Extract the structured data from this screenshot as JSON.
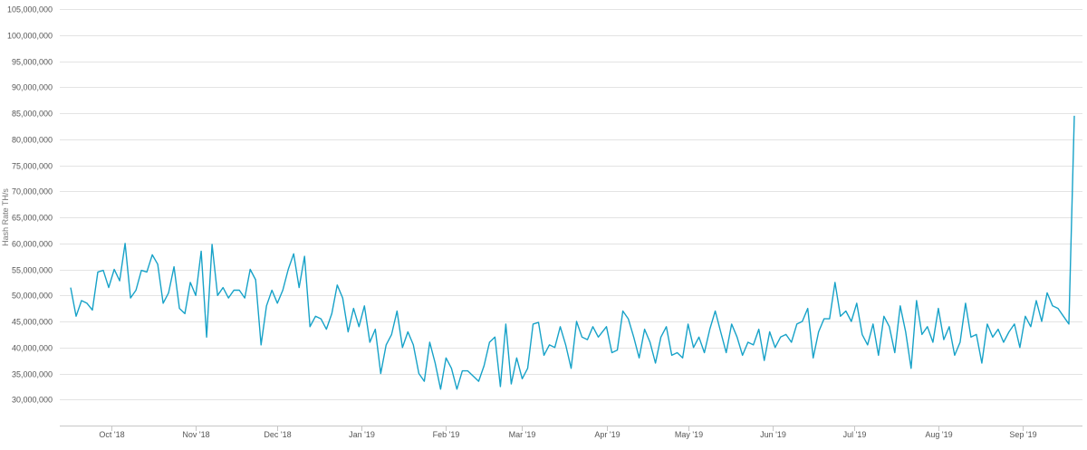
{
  "chart_data": {
    "type": "line",
    "ylabel": "Hash Rate TH/s",
    "xlabel": "",
    "title": "",
    "ylim": [
      25000000,
      105000000
    ],
    "yticks": [
      30000000,
      35000000,
      40000000,
      45000000,
      50000000,
      55000000,
      60000000,
      65000000,
      70000000,
      75000000,
      80000000,
      85000000,
      90000000,
      95000000,
      100000000,
      105000000
    ],
    "ytick_labels": [
      "30,000,000",
      "35,000,000",
      "40,000,000",
      "45,000,000",
      "50,000,000",
      "55,000,000",
      "60,000,000",
      "65,000,000",
      "70,000,000",
      "75,000,000",
      "80,000,000",
      "85,000,000",
      "90,000,000",
      "95,000,000",
      "100,000,000",
      "105,000,000"
    ],
    "xlim": [
      "2018-09-12",
      "2019-09-23"
    ],
    "xticks": [
      {
        "date": "2018-10-01",
        "label": "Oct '18"
      },
      {
        "date": "2018-11-01",
        "label": "Nov '18"
      },
      {
        "date": "2018-12-01",
        "label": "Dec '18"
      },
      {
        "date": "2019-01-01",
        "label": "Jan '19"
      },
      {
        "date": "2019-02-01",
        "label": "Feb '19"
      },
      {
        "date": "2019-03-01",
        "label": "Mar '19"
      },
      {
        "date": "2019-04-01",
        "label": "Apr '19"
      },
      {
        "date": "2019-05-01",
        "label": "May '19"
      },
      {
        "date": "2019-06-01",
        "label": "Jun '19"
      },
      {
        "date": "2019-07-01",
        "label": "Jul '19"
      },
      {
        "date": "2019-08-01",
        "label": "Aug '19"
      },
      {
        "date": "2019-09-01",
        "label": "Sep '19"
      }
    ],
    "grid": true,
    "legend": "none",
    "color": "#17a2c8",
    "series": [
      {
        "name": "",
        "points": [
          [
            "2018-09-16",
            51500000
          ],
          [
            "2018-09-18",
            46000000
          ],
          [
            "2018-09-20",
            49000000
          ],
          [
            "2018-09-22",
            48500000
          ],
          [
            "2018-09-24",
            47200000
          ],
          [
            "2018-09-26",
            54500000
          ],
          [
            "2018-09-28",
            54800000
          ],
          [
            "2018-09-30",
            51500000
          ],
          [
            "2018-10-02",
            55000000
          ],
          [
            "2018-10-04",
            52800000
          ],
          [
            "2018-10-06",
            60000000
          ],
          [
            "2018-10-08",
            49500000
          ],
          [
            "2018-10-10",
            51000000
          ],
          [
            "2018-10-12",
            54800000
          ],
          [
            "2018-10-14",
            54500000
          ],
          [
            "2018-10-16",
            57800000
          ],
          [
            "2018-10-18",
            56000000
          ],
          [
            "2018-10-20",
            48500000
          ],
          [
            "2018-10-22",
            50500000
          ],
          [
            "2018-10-24",
            55500000
          ],
          [
            "2018-10-26",
            47500000
          ],
          [
            "2018-10-28",
            46500000
          ],
          [
            "2018-10-30",
            52500000
          ],
          [
            "2018-11-01",
            50000000
          ],
          [
            "2018-11-03",
            58500000
          ],
          [
            "2018-11-05",
            42000000
          ],
          [
            "2018-11-07",
            59800000
          ],
          [
            "2018-11-09",
            50000000
          ],
          [
            "2018-11-11",
            51500000
          ],
          [
            "2018-11-13",
            49500000
          ],
          [
            "2018-11-15",
            51000000
          ],
          [
            "2018-11-17",
            51000000
          ],
          [
            "2018-11-19",
            49500000
          ],
          [
            "2018-11-21",
            55000000
          ],
          [
            "2018-11-23",
            53000000
          ],
          [
            "2018-11-25",
            40500000
          ],
          [
            "2018-11-27",
            48000000
          ],
          [
            "2018-11-29",
            51000000
          ],
          [
            "2018-12-01",
            48500000
          ],
          [
            "2018-12-03",
            51000000
          ],
          [
            "2018-12-05",
            55000000
          ],
          [
            "2018-12-07",
            58000000
          ],
          [
            "2018-12-09",
            51500000
          ],
          [
            "2018-12-11",
            57500000
          ],
          [
            "2018-12-13",
            44000000
          ],
          [
            "2018-12-15",
            46000000
          ],
          [
            "2018-12-17",
            45500000
          ],
          [
            "2018-12-19",
            43500000
          ],
          [
            "2018-12-21",
            46500000
          ],
          [
            "2018-12-23",
            52000000
          ],
          [
            "2018-12-25",
            49500000
          ],
          [
            "2018-12-27",
            43000000
          ],
          [
            "2018-12-29",
            47500000
          ],
          [
            "2018-12-31",
            44000000
          ],
          [
            "2019-01-02",
            48000000
          ],
          [
            "2019-01-04",
            41000000
          ],
          [
            "2019-01-06",
            43500000
          ],
          [
            "2019-01-08",
            35000000
          ],
          [
            "2019-01-10",
            40500000
          ],
          [
            "2019-01-12",
            42500000
          ],
          [
            "2019-01-14",
            47000000
          ],
          [
            "2019-01-16",
            40000000
          ],
          [
            "2019-01-18",
            43000000
          ],
          [
            "2019-01-20",
            40500000
          ],
          [
            "2019-01-22",
            35000000
          ],
          [
            "2019-01-24",
            33500000
          ],
          [
            "2019-01-26",
            41000000
          ],
          [
            "2019-01-28",
            37000000
          ],
          [
            "2019-01-30",
            32000000
          ],
          [
            "2019-02-01",
            38000000
          ],
          [
            "2019-02-03",
            36000000
          ],
          [
            "2019-02-05",
            32000000
          ],
          [
            "2019-02-07",
            35500000
          ],
          [
            "2019-02-09",
            35500000
          ],
          [
            "2019-02-11",
            34500000
          ],
          [
            "2019-02-13",
            33500000
          ],
          [
            "2019-02-15",
            36500000
          ],
          [
            "2019-02-17",
            41000000
          ],
          [
            "2019-02-19",
            42000000
          ],
          [
            "2019-02-21",
            32500000
          ],
          [
            "2019-02-23",
            44500000
          ],
          [
            "2019-02-25",
            33000000
          ],
          [
            "2019-02-27",
            38000000
          ],
          [
            "2019-03-01",
            34000000
          ],
          [
            "2019-03-03",
            36000000
          ],
          [
            "2019-03-05",
            44500000
          ],
          [
            "2019-03-07",
            44800000
          ],
          [
            "2019-03-09",
            38500000
          ],
          [
            "2019-03-11",
            40500000
          ],
          [
            "2019-03-13",
            40000000
          ],
          [
            "2019-03-15",
            44000000
          ],
          [
            "2019-03-17",
            40500000
          ],
          [
            "2019-03-19",
            36000000
          ],
          [
            "2019-03-21",
            45000000
          ],
          [
            "2019-03-23",
            42000000
          ],
          [
            "2019-03-25",
            41500000
          ],
          [
            "2019-03-27",
            44000000
          ],
          [
            "2019-03-29",
            42000000
          ],
          [
            "2019-04-01",
            44000000
          ],
          [
            "2019-04-03",
            39000000
          ],
          [
            "2019-04-05",
            39500000
          ],
          [
            "2019-04-07",
            47000000
          ],
          [
            "2019-04-09",
            45500000
          ],
          [
            "2019-04-11",
            42000000
          ],
          [
            "2019-04-13",
            38000000
          ],
          [
            "2019-04-15",
            43500000
          ],
          [
            "2019-04-17",
            41000000
          ],
          [
            "2019-04-19",
            37000000
          ],
          [
            "2019-04-21",
            42000000
          ],
          [
            "2019-04-23",
            44000000
          ],
          [
            "2019-04-25",
            38500000
          ],
          [
            "2019-04-27",
            39000000
          ],
          [
            "2019-04-29",
            38000000
          ],
          [
            "2019-05-01",
            44500000
          ],
          [
            "2019-05-03",
            40000000
          ],
          [
            "2019-05-05",
            42000000
          ],
          [
            "2019-05-07",
            39000000
          ],
          [
            "2019-05-09",
            43500000
          ],
          [
            "2019-05-11",
            47000000
          ],
          [
            "2019-05-13",
            43000000
          ],
          [
            "2019-05-15",
            39000000
          ],
          [
            "2019-05-17",
            44500000
          ],
          [
            "2019-05-19",
            42000000
          ],
          [
            "2019-05-21",
            38500000
          ],
          [
            "2019-05-23",
            41000000
          ],
          [
            "2019-05-25",
            40500000
          ],
          [
            "2019-05-27",
            43500000
          ],
          [
            "2019-05-29",
            37500000
          ],
          [
            "2019-05-31",
            43000000
          ],
          [
            "2019-06-02",
            40000000
          ],
          [
            "2019-06-04",
            42000000
          ],
          [
            "2019-06-06",
            42500000
          ],
          [
            "2019-06-08",
            41000000
          ],
          [
            "2019-06-10",
            44500000
          ],
          [
            "2019-06-12",
            45000000
          ],
          [
            "2019-06-14",
            47500000
          ],
          [
            "2019-06-16",
            38000000
          ],
          [
            "2019-06-18",
            43000000
          ],
          [
            "2019-06-20",
            45500000
          ],
          [
            "2019-06-22",
            45500000
          ],
          [
            "2019-06-24",
            52500000
          ],
          [
            "2019-06-26",
            46000000
          ],
          [
            "2019-06-28",
            47000000
          ],
          [
            "2019-06-30",
            45000000
          ],
          [
            "2019-07-02",
            48500000
          ],
          [
            "2019-07-04",
            42500000
          ],
          [
            "2019-07-06",
            40500000
          ],
          [
            "2019-07-08",
            44500000
          ],
          [
            "2019-07-10",
            38500000
          ],
          [
            "2019-07-12",
            46000000
          ],
          [
            "2019-07-14",
            44000000
          ],
          [
            "2019-07-16",
            39000000
          ],
          [
            "2019-07-18",
            48000000
          ],
          [
            "2019-07-20",
            43000000
          ],
          [
            "2019-07-22",
            36000000
          ],
          [
            "2019-07-24",
            49000000
          ],
          [
            "2019-07-26",
            42500000
          ],
          [
            "2019-07-28",
            44000000
          ],
          [
            "2019-07-30",
            41000000
          ],
          [
            "2019-08-01",
            47500000
          ],
          [
            "2019-08-03",
            41500000
          ],
          [
            "2019-08-05",
            44000000
          ],
          [
            "2019-08-07",
            38500000
          ],
          [
            "2019-08-09",
            41000000
          ],
          [
            "2019-08-11",
            48500000
          ],
          [
            "2019-08-13",
            42000000
          ],
          [
            "2019-08-15",
            42500000
          ],
          [
            "2019-08-17",
            37000000
          ],
          [
            "2019-08-19",
            44500000
          ],
          [
            "2019-08-21",
            42000000
          ],
          [
            "2019-08-23",
            43500000
          ],
          [
            "2019-08-25",
            41000000
          ],
          [
            "2019-08-27",
            43000000
          ],
          [
            "2019-08-29",
            44500000
          ],
          [
            "2019-08-31",
            40000000
          ],
          [
            "2019-09-02",
            46000000
          ],
          [
            "2019-09-04",
            44000000
          ],
          [
            "2019-09-06",
            49000000
          ],
          [
            "2019-09-08",
            45000000
          ],
          [
            "2019-09-10",
            50500000
          ],
          [
            "2019-09-12",
            48000000
          ],
          [
            "2019-09-14",
            47500000
          ],
          [
            "2019-09-16",
            46000000
          ],
          [
            "2019-09-18",
            44500000
          ],
          [
            "2019-09-20",
            84500000
          ]
        ]
      }
    ]
  }
}
